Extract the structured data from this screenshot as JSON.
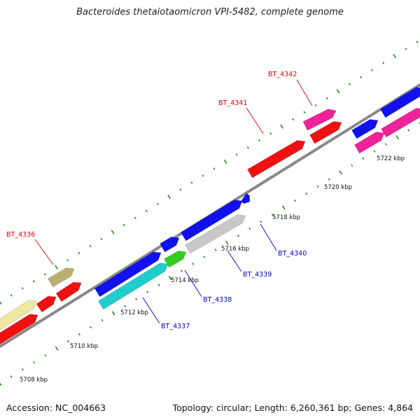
{
  "title": "Bacteroides thetaiotaomicron VPI-5482, complete genome",
  "footer": {
    "accession": "Accession: NC_004663",
    "summary": "Topology: circular; Length: 6,260,361 bp; Genes: 4,864"
  },
  "scale_labels": [
    "5708 kbp",
    "5710 kbp",
    "5712 kbp",
    "5714 kbp",
    "5716 kbp",
    "5718 kbp",
    "5720 kbp",
    "5722 kbp"
  ],
  "gene_labels": [
    {
      "name": "BT_4336",
      "color": "#dd0000"
    },
    {
      "name": "BT_4337",
      "color": "#0000cc"
    },
    {
      "name": "BT_4338",
      "color": "#0000cc"
    },
    {
      "name": "BT_4339",
      "color": "#0000cc"
    },
    {
      "name": "BT_4340",
      "color": "#0000cc"
    },
    {
      "name": "BT_4341",
      "color": "#dd0000"
    },
    {
      "name": "BT_4342",
      "color": "#dd0000"
    }
  ],
  "colors": {
    "red": "#ee1111",
    "blue": "#1111ee",
    "cyan": "#22cccc",
    "green": "#33cc22",
    "gray": "#c8c8c8",
    "khaki": "#b8b070",
    "yellow": "#eee8a0",
    "magenta": "#ee2299",
    "tick": "#228822",
    "backbone": "#888888"
  }
}
